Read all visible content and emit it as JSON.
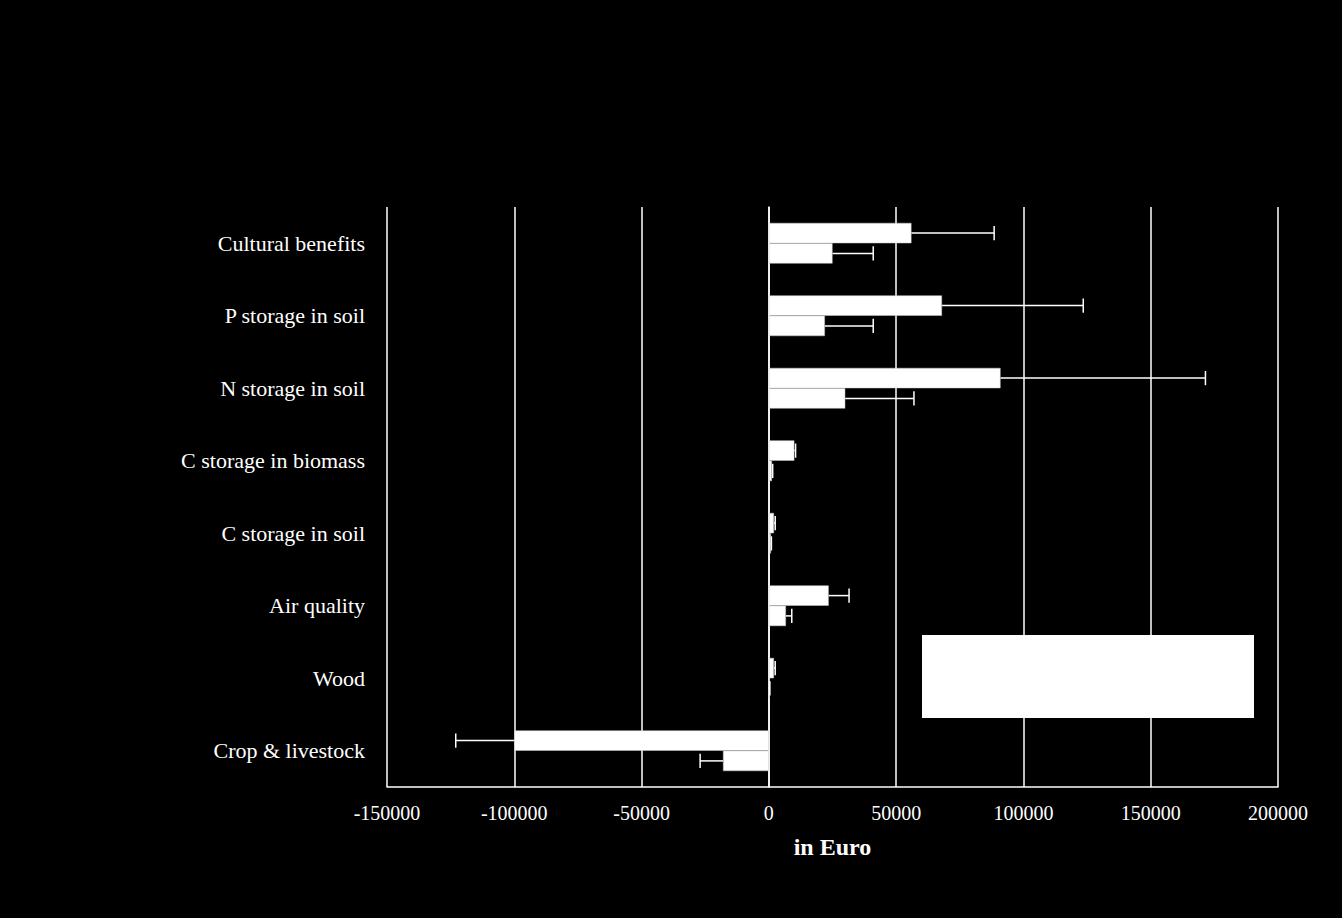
{
  "chart_data": {
    "type": "bar",
    "orientation": "horizontal",
    "categories": [
      "Cultural benefits",
      "P storage in soil",
      "N storage in soil",
      "C storage in biomass",
      "C storage in soil",
      "Air quality",
      "Wood",
      "Crop & livestock"
    ],
    "series": [
      {
        "color": "#ffffff",
        "values": [
          56000,
          68000,
          91000,
          10000,
          2000,
          23500,
          2000,
          -100000
        ],
        "errors": [
          32500,
          55500,
          80500,
          500,
          500,
          8000,
          500,
          23000
        ]
      },
      {
        "color": "#ffffff",
        "values": [
          25000,
          22000,
          30000,
          1200,
          800,
          6700,
          300,
          -18000
        ],
        "errors": [
          16000,
          19000,
          27000,
          300,
          200,
          2300,
          100,
          9000
        ]
      }
    ],
    "xlabel": "in Euro",
    "xlim": [
      -150000,
      200000
    ],
    "xticks": [
      -150000,
      -100000,
      -50000,
      0,
      50000,
      100000,
      150000,
      200000
    ],
    "grid": true
  }
}
